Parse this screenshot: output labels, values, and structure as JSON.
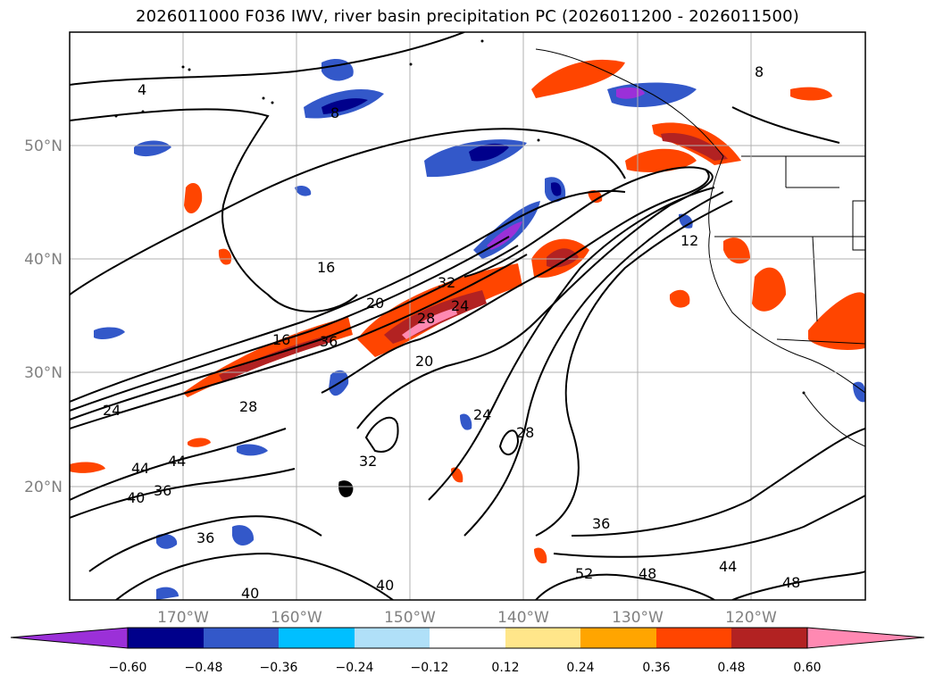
{
  "title": "2026011000 F036 IWV, river basin precipitation PC (2026011200 - 2026011500)",
  "lat_labels": [
    "50°N",
    "40°N",
    "30°N",
    "20°N"
  ],
  "lon_labels": [
    "170°W",
    "160°W",
    "150°W",
    "140°W",
    "130°W",
    "120°W"
  ],
  "colorbar": {
    "ticks": [
      "−0.60",
      "−0.48",
      "−0.36",
      "−0.24",
      "−0.12",
      "0.12",
      "0.24",
      "0.36",
      "0.48",
      "0.60"
    ],
    "colors": [
      "#9b30d8",
      "#00008b",
      "#3358c9",
      "#00bfff",
      "#b0e0f8",
      "#ffffff",
      "#ffe68a",
      "#ffa500",
      "#ff4500",
      "#b22222",
      "#ff89b2"
    ]
  },
  "contour_labels": [
    "4",
    "8",
    "16",
    "20",
    "24",
    "28",
    "32",
    "36",
    "40",
    "44",
    "48",
    "52",
    "12"
  ]
}
